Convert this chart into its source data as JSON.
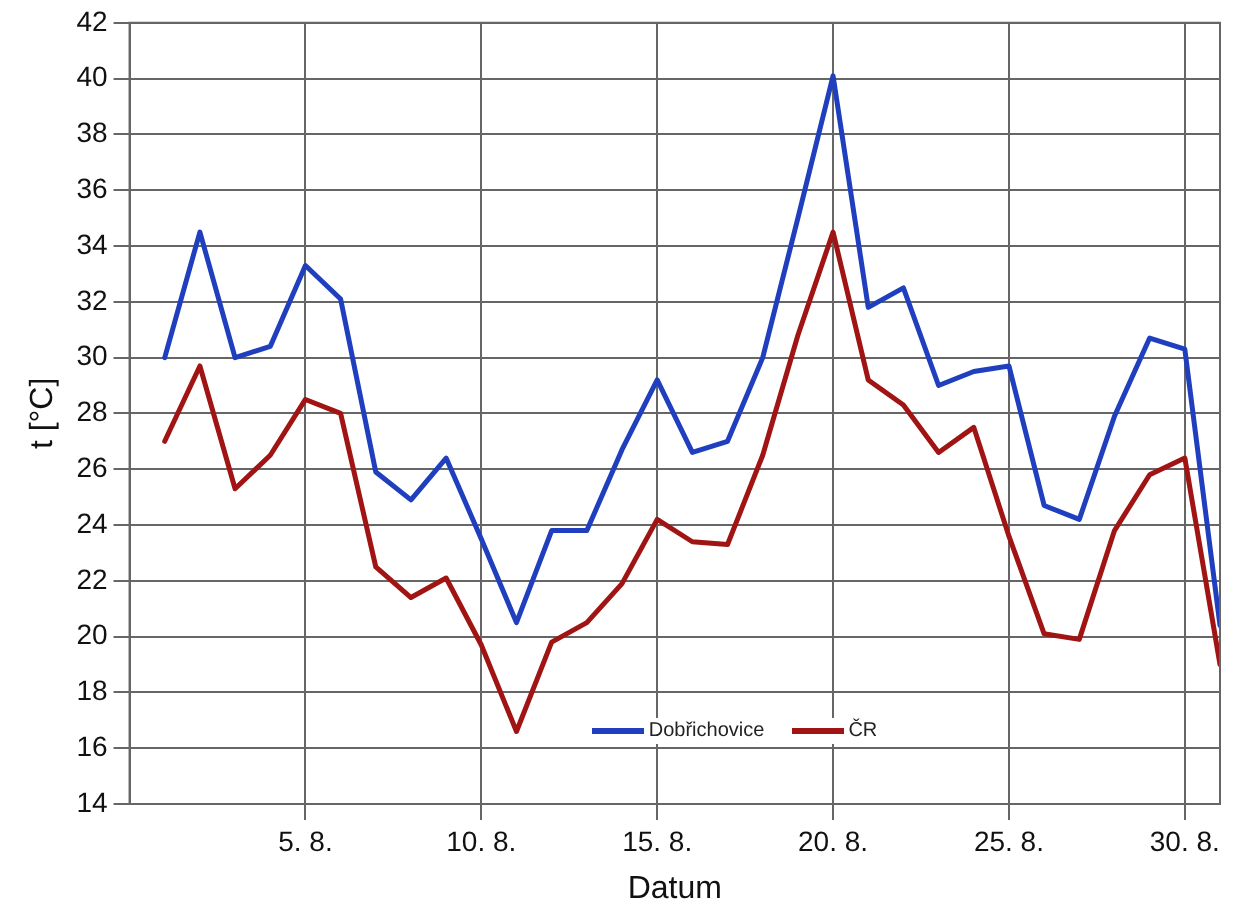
{
  "chart_data": {
    "type": "line",
    "xlabel": "Datum",
    "ylabel": "t [°C]",
    "categories": [
      null,
      null,
      null,
      null,
      "5. 8.",
      null,
      null,
      null,
      null,
      "10. 8.",
      null,
      null,
      null,
      null,
      "15. 8.",
      null,
      null,
      null,
      null,
      "20. 8.",
      null,
      null,
      null,
      null,
      "25. 8.",
      null,
      null,
      null,
      null,
      "30. 8.",
      null
    ],
    "series": [
      {
        "name": "Dobřichovice",
        "color": "#1f3fbf",
        "values": [
          30.0,
          34.5,
          30.0,
          30.4,
          33.3,
          32.1,
          25.9,
          24.9,
          26.4,
          23.5,
          20.5,
          23.8,
          23.8,
          26.7,
          29.2,
          26.6,
          27.0,
          30.0,
          35.0,
          40.1,
          31.8,
          32.5,
          29.0,
          29.5,
          29.7,
          24.7,
          24.2,
          27.9,
          30.7,
          30.3,
          20.4
        ]
      },
      {
        "name": "ČR",
        "color": "#a01414",
        "values": [
          27.0,
          29.7,
          25.3,
          26.5,
          28.5,
          28.0,
          22.5,
          21.4,
          22.1,
          19.7,
          16.6,
          19.8,
          20.5,
          21.9,
          24.2,
          23.4,
          23.3,
          26.5,
          30.8,
          34.5,
          29.2,
          28.3,
          26.6,
          27.5,
          23.6,
          20.1,
          19.9,
          23.8,
          25.8,
          26.4,
          19.0
        ]
      }
    ],
    "ylim": [
      14,
      42
    ],
    "yticks": [
      14,
      16,
      18,
      20,
      22,
      24,
      26,
      28,
      30,
      32,
      34,
      36,
      38,
      40,
      42
    ],
    "grid": true,
    "legend": "bottom",
    "marker": "none",
    "line_style": "solid"
  }
}
